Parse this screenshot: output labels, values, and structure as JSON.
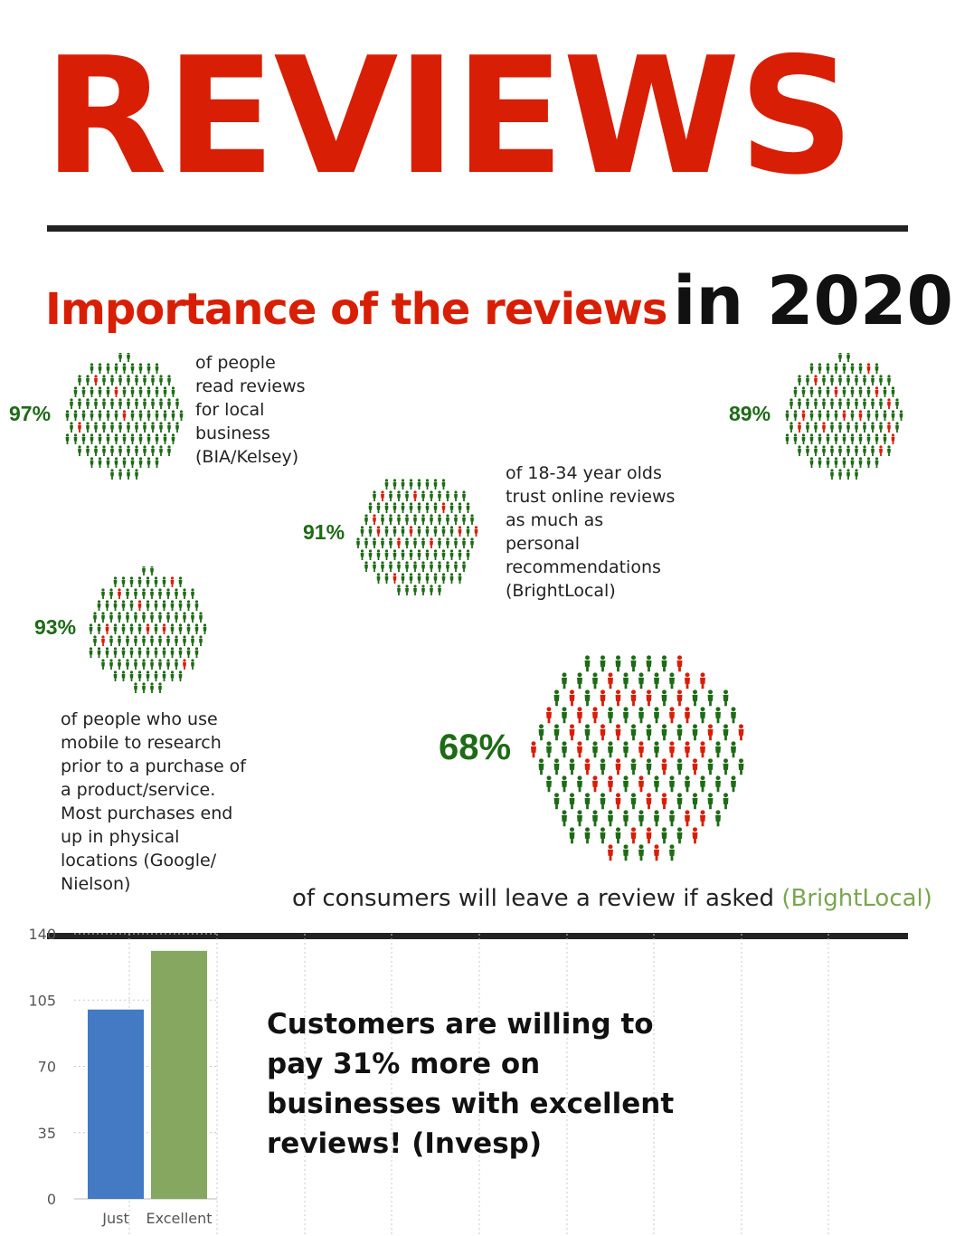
{
  "title": "REVIEWS",
  "subtitle": {
    "red": "Importance of the reviews",
    "black": "in 2020"
  },
  "colors": {
    "red": "#d81e05",
    "green": "#1e6b16",
    "blue": "#4479c4",
    "olive": "#86a760",
    "source_green": "#7aa650"
  },
  "stats": [
    {
      "id": "s97",
      "percent": "97%",
      "value": 97,
      "lines": [
        "of people",
        "read reviews",
        "for local",
        "business",
        "(BIA/Kelsey)"
      ]
    },
    {
      "id": "s89",
      "percent": "89%",
      "value": 89,
      "lines": []
    },
    {
      "id": "s91",
      "percent": "91%",
      "value": 91,
      "lines": [
        "of 18-34 year olds",
        "trust online reviews",
        "as much as",
        "personal",
        "recommendations",
        "(BrightLocal)"
      ]
    },
    {
      "id": "s93",
      "percent": "93%",
      "value": 93,
      "lines": [
        "of people who use",
        "mobile to research",
        "prior to a purchase of",
        "a product/service.",
        "Most purchases end",
        "up in physical",
        "locations (Google/",
        "Nielson)"
      ]
    },
    {
      "id": "s68",
      "percent": "68%",
      "value": 68,
      "lines": []
    }
  ],
  "consumers_text": "of consumers will leave a review if asked",
  "consumers_source": "(BrightLocal)",
  "callout": [
    "Customers are willing to",
    "pay 31% more on",
    "businesses with excellent",
    "reviews! (Invesp)"
  ],
  "chart_data": {
    "type": "bar",
    "categories": [
      "Just",
      "Excellent"
    ],
    "values": [
      100,
      131
    ],
    "colors": [
      "#4479c4",
      "#86a760"
    ],
    "ylim": [
      0,
      140
    ],
    "yticks": [
      0,
      35,
      70,
      105,
      140
    ],
    "grid": true
  }
}
